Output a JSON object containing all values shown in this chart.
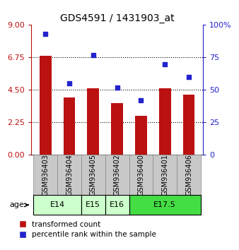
{
  "title": "GDS4591 / 1431903_at",
  "samples": [
    "GSM936403",
    "GSM936404",
    "GSM936405",
    "GSM936402",
    "GSM936400",
    "GSM936401",
    "GSM936406"
  ],
  "transformed_count": [
    6.85,
    4.0,
    4.6,
    3.6,
    2.7,
    4.6,
    4.2
  ],
  "percentile_rank": [
    93,
    55,
    77,
    52,
    42,
    70,
    60
  ],
  "bar_color": "#bb1111",
  "scatter_color": "#2222cc",
  "left_ylim": [
    0,
    9
  ],
  "right_ylim": [
    0,
    100
  ],
  "left_yticks": [
    0,
    2.25,
    4.5,
    6.75,
    9
  ],
  "right_yticks": [
    0,
    25,
    50,
    75,
    100
  ],
  "right_yticklabels": [
    "0",
    "25",
    "50",
    "75",
    "100%"
  ],
  "hlines": [
    2.25,
    4.5,
    6.75
  ],
  "age_groups": [
    {
      "label": "E14",
      "indices": [
        0,
        1
      ],
      "color": "#ccffcc"
    },
    {
      "label": "E15",
      "indices": [
        2
      ],
      "color": "#ccffcc"
    },
    {
      "label": "E16",
      "indices": [
        3
      ],
      "color": "#ccffcc"
    },
    {
      "label": "E17.5",
      "indices": [
        4,
        5,
        6
      ],
      "color": "#44dd44"
    }
  ],
  "legend_bar_label": "transformed count",
  "legend_scatter_label": "percentile rank within the sample",
  "age_label": "age",
  "bar_width": 0.5,
  "sample_bg_color": "#c8c8c8",
  "sample_border_color": "#888888",
  "plot_bg": "#ffffff"
}
